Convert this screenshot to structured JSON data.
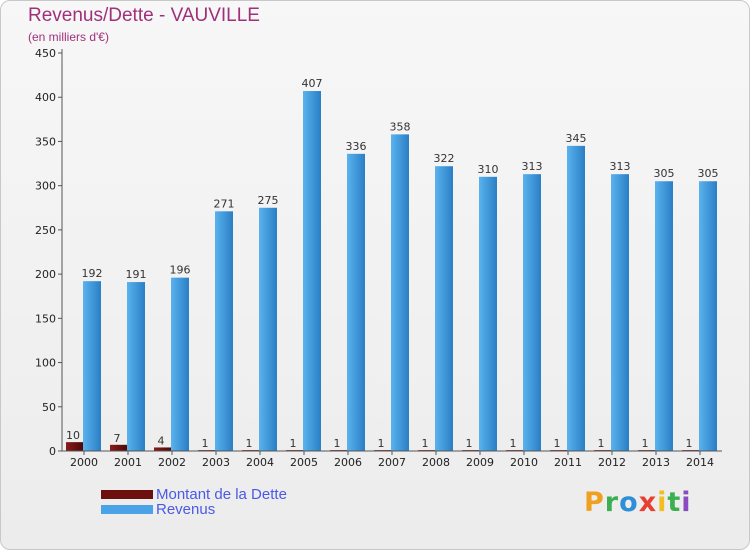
{
  "chart_data": {
    "type": "bar",
    "title": "Revenus/Dette - VAUVILLE",
    "subtitle": "(en milliers d'€)",
    "categories": [
      "2000",
      "2001",
      "2002",
      "2003",
      "2004",
      "2005",
      "2006",
      "2007",
      "2008",
      "2009",
      "2010",
      "2011",
      "2012",
      "2013",
      "2014"
    ],
    "series": [
      {
        "name": "Montant de la Dette",
        "color": "#6b0f0f",
        "values": [
          10,
          7,
          4,
          1,
          1,
          1,
          1,
          1,
          1,
          1,
          1,
          1,
          1,
          1,
          1
        ]
      },
      {
        "name": "Revenus",
        "color": "#4aa3e6",
        "values": [
          192,
          191,
          196,
          271,
          275,
          407,
          336,
          358,
          322,
          310,
          313,
          345,
          313,
          305,
          305
        ]
      }
    ],
    "ylim": [
      0,
      450
    ],
    "yticks": [
      0,
      50,
      100,
      150,
      200,
      250,
      300,
      350,
      400,
      450
    ],
    "grid": false,
    "legend": "bottom-left"
  },
  "branding": {
    "logo_letters": [
      "P",
      "r",
      "o",
      "x",
      "i",
      "t",
      "i"
    ],
    "logo_colors": [
      "#f0a020",
      "#3cb050",
      "#2e8fd8",
      "#e84030",
      "#f0c020",
      "#3cb050",
      "#8a4ac0"
    ]
  }
}
